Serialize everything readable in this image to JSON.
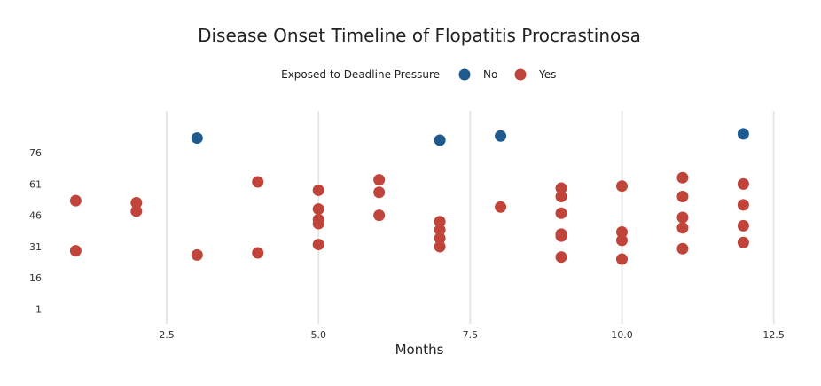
{
  "chart_data": {
    "type": "scatter",
    "title": "Disease Onset Timeline of Flopatitis Procrastinosa",
    "xlabel": "Months",
    "ylabel": "",
    "xlim": [
      0.6,
      12.9
    ],
    "ylim": [
      -6,
      96
    ],
    "x_ticks": [
      2.5,
      5.0,
      7.5,
      10.0,
      12.5
    ],
    "x_tick_labels": [
      "2.5",
      "5.0",
      "7.5",
      "10.0",
      "12.5"
    ],
    "y_ticks": [
      1,
      16,
      31,
      46,
      61,
      76
    ],
    "y_tick_labels": [
      "1",
      "16",
      "31",
      "46",
      "61",
      "76"
    ],
    "grid": "vertical",
    "legend": {
      "title": "Exposed to Deadline Pressure",
      "position": "top-center"
    },
    "series": [
      {
        "name": "No",
        "color": "#1f5a8f",
        "points": [
          {
            "x": 3,
            "y": 83
          },
          {
            "x": 7,
            "y": 82
          },
          {
            "x": 8,
            "y": 84
          },
          {
            "x": 12,
            "y": 85
          }
        ]
      },
      {
        "name": "Yes",
        "color": "#c0443a",
        "points": [
          {
            "x": 1,
            "y": 53
          },
          {
            "x": 1,
            "y": 29
          },
          {
            "x": 2,
            "y": 52
          },
          {
            "x": 2,
            "y": 48
          },
          {
            "x": 3,
            "y": 27
          },
          {
            "x": 4,
            "y": 62
          },
          {
            "x": 4,
            "y": 28
          },
          {
            "x": 5,
            "y": 58
          },
          {
            "x": 5,
            "y": 49
          },
          {
            "x": 5,
            "y": 44
          },
          {
            "x": 5,
            "y": 42
          },
          {
            "x": 5,
            "y": 32
          },
          {
            "x": 6,
            "y": 63
          },
          {
            "x": 6,
            "y": 57
          },
          {
            "x": 6,
            "y": 46
          },
          {
            "x": 7,
            "y": 43
          },
          {
            "x": 7,
            "y": 39
          },
          {
            "x": 7,
            "y": 35
          },
          {
            "x": 7,
            "y": 31
          },
          {
            "x": 8,
            "y": 50
          },
          {
            "x": 9,
            "y": 59
          },
          {
            "x": 9,
            "y": 55
          },
          {
            "x": 9,
            "y": 47
          },
          {
            "x": 9,
            "y": 37
          },
          {
            "x": 9,
            "y": 36
          },
          {
            "x": 9,
            "y": 26
          },
          {
            "x": 10,
            "y": 60
          },
          {
            "x": 10,
            "y": 38
          },
          {
            "x": 10,
            "y": 34
          },
          {
            "x": 10,
            "y": 25
          },
          {
            "x": 11,
            "y": 64
          },
          {
            "x": 11,
            "y": 55
          },
          {
            "x": 11,
            "y": 45
          },
          {
            "x": 11,
            "y": 40
          },
          {
            "x": 11,
            "y": 30
          },
          {
            "x": 12,
            "y": 61
          },
          {
            "x": 12,
            "y": 51
          },
          {
            "x": 12,
            "y": 41
          },
          {
            "x": 12,
            "y": 33
          }
        ]
      }
    ]
  }
}
